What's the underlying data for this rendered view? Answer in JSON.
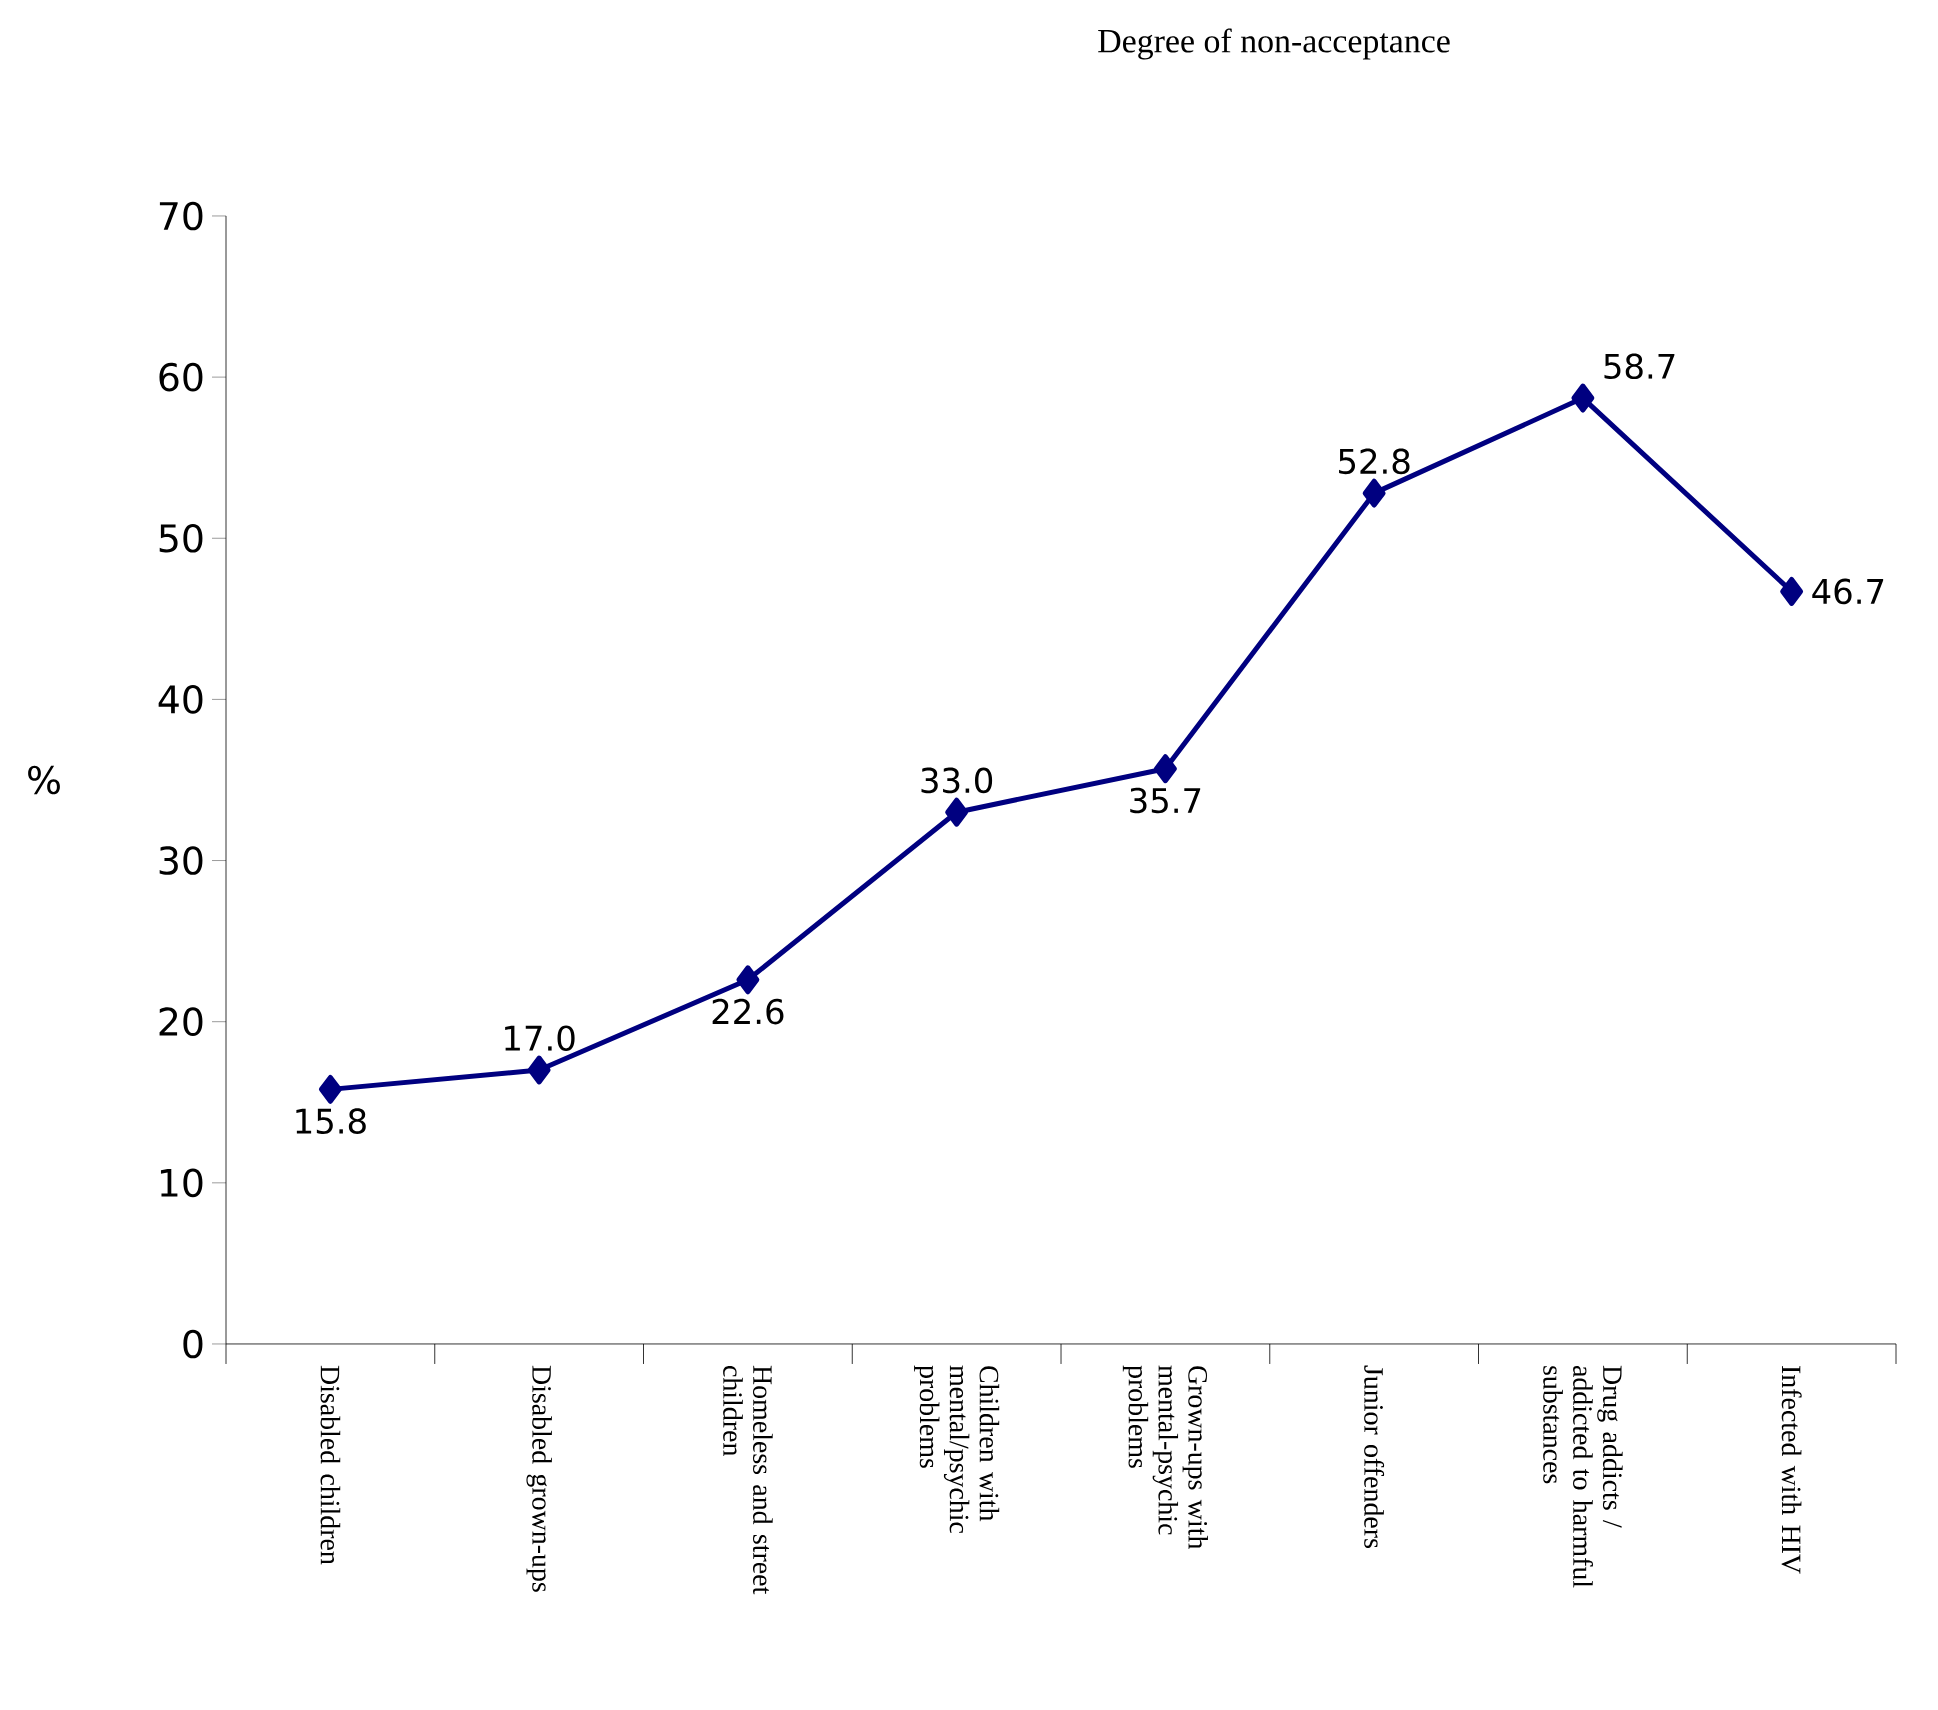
{
  "chart_data": {
    "type": "line",
    "title": "Degree of non-acceptance",
    "ylabel": "%",
    "categories": [
      "Disabled children",
      "Disabled grown-ups",
      "Homeless and street children",
      "Children with mental/psychic problems",
      "Grown-ups with mental-psychic problems",
      "Junior offenders",
      "Drug addicts / addicted to harmful substances",
      "Infected with HIV"
    ],
    "values": [
      15.8,
      17.0,
      22.6,
      33.0,
      35.7,
      52.8,
      58.7,
      46.7
    ],
    "value_labels": [
      "15.8",
      "17.0",
      "22.6",
      "33.0",
      "35.7",
      "52.8",
      "58.7",
      "46.7"
    ],
    "color": "#000080",
    "marker": "diamond",
    "ylim": [
      0,
      70
    ],
    "yticks": [
      0,
      10,
      20,
      30,
      40,
      50,
      60,
      70
    ]
  }
}
